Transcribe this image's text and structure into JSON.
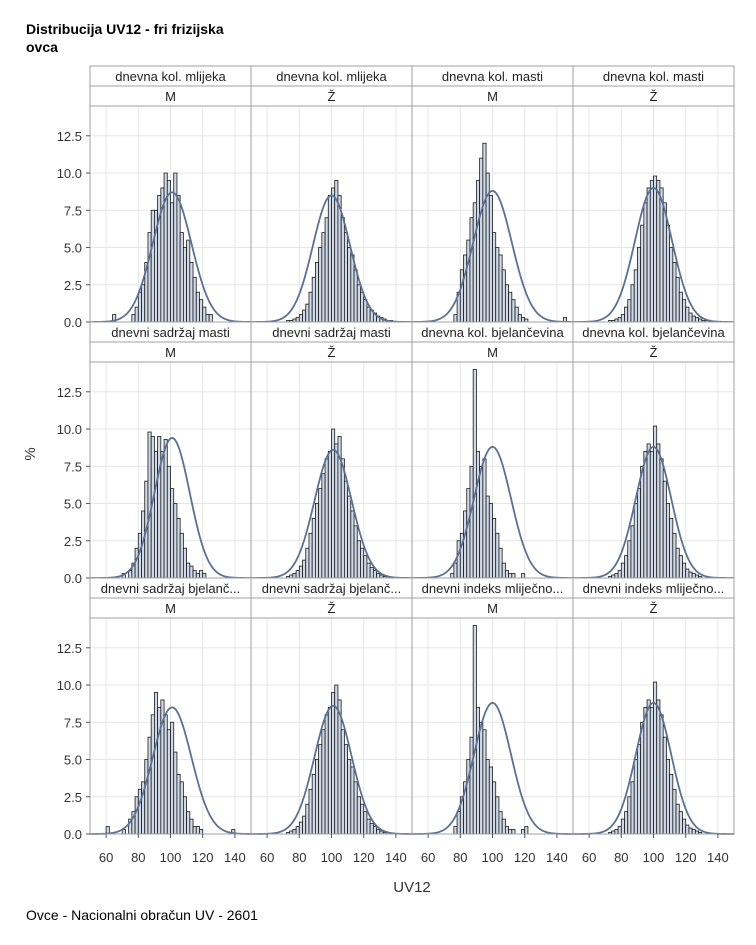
{
  "title": "Distribucija UV12 - fri frizijska ovca",
  "footnote": "Ovce - Nacionalni obračun UV - 2601",
  "colors": {
    "bar_fill": "#cfd9e8",
    "bar_stroke": "#1a1a1a",
    "curve": "#5b7193",
    "grid": "#e6e6e6",
    "header_bg": "#ffffff",
    "border": "#a0a0a0"
  },
  "chart_data": {
    "type": "histogram-panel",
    "xlabel": "UV12",
    "ylabel": "%",
    "xlim": [
      50,
      150
    ],
    "ylim": [
      0,
      14.5
    ],
    "xticks": [
      60,
      80,
      100,
      120,
      140
    ],
    "yticks": [
      0,
      2.5,
      5,
      7.5,
      10,
      12.5
    ],
    "ytick_labels": [
      "0.0",
      "2.5",
      "5.0",
      "7.5",
      "10.0",
      "12.5"
    ],
    "grid": true,
    "bin_start": 58,
    "bin_width": 2,
    "panels": [
      {
        "row": 0,
        "col": 0,
        "trait": "dnevna kol. mlijeka",
        "sex": "M",
        "mean": 101,
        "sd": 12,
        "curve_peak": 8.7,
        "values": [
          0,
          0,
          0,
          0.5,
          0,
          0,
          0,
          0,
          0,
          0.5,
          1,
          2,
          2.5,
          4,
          6,
          7.5,
          7.5,
          8.5,
          9,
          10,
          9.5,
          8,
          10,
          8.5,
          6,
          5,
          5.5,
          4,
          3,
          2,
          1.5,
          1,
          0.5,
          0.5,
          0,
          0,
          0,
          0,
          0,
          0,
          0,
          0,
          0,
          0,
          0,
          0
        ]
      },
      {
        "row": 0,
        "col": 1,
        "trait": "dnevna kol. mlijeka",
        "sex": "Ž",
        "mean": 100,
        "sd": 11.5,
        "curve_peak": 8.5,
        "values": [
          0,
          0,
          0,
          0,
          0,
          0,
          0,
          0.1,
          0.1,
          0.2,
          0.3,
          0.5,
          0.8,
          1.2,
          2,
          3,
          4,
          5,
          6,
          7,
          8.5,
          9,
          9.5,
          8.5,
          7,
          6,
          5,
          4.5,
          3.5,
          2.5,
          2,
          1.5,
          1,
          0.8,
          0.6,
          0.4,
          0.3,
          0.2,
          0.1,
          0.1,
          0,
          0,
          0,
          0,
          0,
          0
        ]
      },
      {
        "row": 0,
        "col": 2,
        "trait": "dnevna kol. masti",
        "sex": "M",
        "mean": 100,
        "sd": 12,
        "curve_peak": 8.8,
        "values": [
          0,
          0,
          0,
          0,
          0,
          0,
          0,
          0,
          0,
          0.5,
          2,
          3.5,
          4.5,
          5.5,
          7,
          8,
          9.5,
          11,
          12,
          10,
          8.5,
          6,
          5,
          4.5,
          3.5,
          2.5,
          2,
          1.5,
          1,
          0.5,
          0.3,
          0.2,
          0,
          0,
          0,
          0,
          0,
          0,
          0,
          0,
          0,
          0,
          0,
          0.3,
          0,
          0
        ]
      },
      {
        "row": 0,
        "col": 3,
        "trait": "dnevna kol. masti",
        "sex": "Ž",
        "mean": 100,
        "sd": 11.5,
        "curve_peak": 9,
        "values": [
          0,
          0,
          0,
          0,
          0,
          0,
          0,
          0.1,
          0.1,
          0.2,
          0.3,
          0.5,
          1,
          1.5,
          2.5,
          3.5,
          5,
          6.5,
          8,
          9,
          9.5,
          9.8,
          9.5,
          9,
          8,
          6.5,
          5,
          4,
          3,
          2,
          1.5,
          1,
          0.6,
          0.4,
          0.3,
          0.2,
          0.1,
          0.1,
          0,
          0,
          0,
          0,
          0,
          0,
          0,
          0
        ]
      },
      {
        "row": 1,
        "col": 0,
        "trait": "dnevni sadržaj masti",
        "sex": "M",
        "mean": 101,
        "sd": 11,
        "curve_peak": 9.4,
        "values": [
          0,
          0,
          0,
          0,
          0,
          0,
          0.3,
          0,
          0.5,
          1,
          2,
          3,
          4.5,
          6.5,
          9.8,
          9.5,
          8.5,
          9.5,
          8.5,
          9.3,
          7.5,
          6,
          5,
          4,
          3,
          2,
          1,
          0.8,
          0.5,
          0.3,
          0.5,
          0.3,
          0,
          0,
          0,
          0,
          0,
          0,
          0,
          0,
          0,
          0,
          0,
          0,
          0,
          0
        ]
      },
      {
        "row": 1,
        "col": 1,
        "trait": "dnevni sadržaj masti",
        "sex": "Ž",
        "mean": 101,
        "sd": 11.5,
        "curve_peak": 8.6,
        "values": [
          0,
          0,
          0,
          0,
          0,
          0,
          0,
          0.1,
          0.2,
          0.3,
          0.5,
          0.8,
          1.2,
          2,
          3,
          4,
          5,
          6,
          7,
          8,
          8.5,
          10,
          9,
          9.5,
          8,
          6.5,
          5.5,
          4.5,
          3.5,
          2.5,
          2,
          1.5,
          1,
          0.7,
          0.5,
          0.3,
          0.2,
          0.1,
          0,
          0,
          0,
          0,
          0,
          0,
          0,
          0
        ]
      },
      {
        "row": 1,
        "col": 2,
        "trait": "dnevna kol. bjelančevina",
        "sex": "M",
        "mean": 100,
        "sd": 11.5,
        "curve_peak": 8.8,
        "values": [
          0,
          0,
          0,
          0,
          0,
          0,
          0,
          0,
          0.3,
          1,
          2.5,
          3,
          4.5,
          6,
          7.5,
          14,
          8.5,
          7.5,
          8,
          5.5,
          5,
          4,
          3,
          2,
          1,
          0.5,
          0.3,
          0.3,
          0,
          0,
          0.3,
          0,
          0,
          0,
          0,
          0,
          0,
          0,
          0,
          0,
          0,
          0,
          0,
          0,
          0,
          0
        ]
      },
      {
        "row": 1,
        "col": 3,
        "trait": "dnevna kol. bjelančevina",
        "sex": "Ž",
        "mean": 100,
        "sd": 11,
        "curve_peak": 8.8,
        "values": [
          0,
          0,
          0,
          0,
          0,
          0,
          0,
          0.1,
          0.2,
          0.3,
          0.5,
          1,
          1.5,
          2.5,
          3.5,
          5,
          6,
          7.5,
          8.5,
          9,
          8.5,
          10.2,
          9,
          8,
          6.5,
          5,
          4,
          3,
          2,
          1.5,
          1,
          0.6,
          0.4,
          0.3,
          0.2,
          0.1,
          0,
          0,
          0,
          0,
          0,
          0,
          0,
          0,
          0,
          0
        ]
      },
      {
        "row": 2,
        "col": 0,
        "trait": "dnevni sadržaj bjelančevina",
        "sex": "M",
        "mean": 101,
        "sd": 12,
        "curve_peak": 8.5,
        "values": [
          0,
          0.5,
          0,
          0,
          0,
          0,
          0.3,
          0,
          1,
          1.5,
          2.5,
          3,
          3.5,
          5,
          6.5,
          8,
          9.5,
          8.5,
          9,
          8,
          7,
          7.5,
          5.5,
          4,
          3.5,
          2.5,
          1.5,
          1,
          0.5,
          0.5,
          0.3,
          0,
          0,
          0,
          0,
          0,
          0,
          0,
          0,
          0,
          0.3,
          0,
          0,
          0,
          0,
          0
        ]
      },
      {
        "row": 2,
        "col": 1,
        "trait": "dnevni sadržaj bjelančevina",
        "sex": "Ž",
        "mean": 101,
        "sd": 11.5,
        "curve_peak": 8.6,
        "values": [
          0,
          0,
          0,
          0,
          0,
          0,
          0,
          0.1,
          0.2,
          0.3,
          0.5,
          0.8,
          1.2,
          2,
          3,
          4,
          5,
          6,
          7,
          8,
          8.5,
          9.5,
          10,
          9,
          7,
          6,
          5,
          4.5,
          3.5,
          2.5,
          2,
          1.5,
          1,
          0.7,
          0.5,
          0.3,
          0.2,
          0.1,
          0,
          0,
          0,
          0,
          0,
          0,
          0,
          0
        ]
      },
      {
        "row": 2,
        "col": 2,
        "trait": "dnevni indeks mliječnosti",
        "sex": "M",
        "mean": 100,
        "sd": 11.5,
        "curve_peak": 8.8,
        "values": [
          0,
          0,
          0,
          0,
          0,
          0,
          0,
          0,
          0,
          0.5,
          1.5,
          2.5,
          3.5,
          5,
          6.5,
          14,
          8.5,
          7.5,
          7,
          5,
          4.5,
          3.5,
          2.5,
          1.5,
          1,
          0.5,
          0.3,
          0.3,
          0,
          0,
          0.3,
          0.5,
          0,
          0,
          0,
          0,
          0,
          0,
          0,
          0,
          0,
          0,
          0,
          0,
          0,
          0
        ]
      },
      {
        "row": 2,
        "col": 3,
        "trait": "dnevni indeks mliječnosti",
        "sex": "Ž",
        "mean": 100,
        "sd": 11,
        "curve_peak": 8.8,
        "values": [
          0,
          0,
          0,
          0,
          0,
          0,
          0,
          0.1,
          0.2,
          0.3,
          0.5,
          1,
          1.5,
          2.5,
          3.5,
          5,
          6,
          7.5,
          8.5,
          9,
          8.5,
          10.2,
          9,
          8,
          6.5,
          5,
          4,
          3,
          2,
          1.5,
          1,
          0.6,
          0.4,
          0.3,
          0.2,
          0.1,
          0,
          0,
          0,
          0,
          0,
          0,
          0,
          0,
          0,
          0
        ]
      }
    ],
    "header_labels": [
      [
        "dnevna kol. mlijeka",
        "dnevna kol. mlijeka",
        "dnevna kol. masti",
        "dnevna kol. masti"
      ],
      [
        "dnevni sadržaj masti",
        "dnevni sadržaj masti",
        "dnevna kol. bjelančevina",
        "dnevna kol. bjelančevina"
      ],
      [
        "dnevni sadržaj bjelanč...",
        "dnevni sadržaj bjelanč...",
        "dnevni indeks mliječno...",
        "dnevni indeks mliječno..."
      ]
    ],
    "sex_labels": [
      "M",
      "Ž",
      "M",
      "Ž"
    ]
  }
}
